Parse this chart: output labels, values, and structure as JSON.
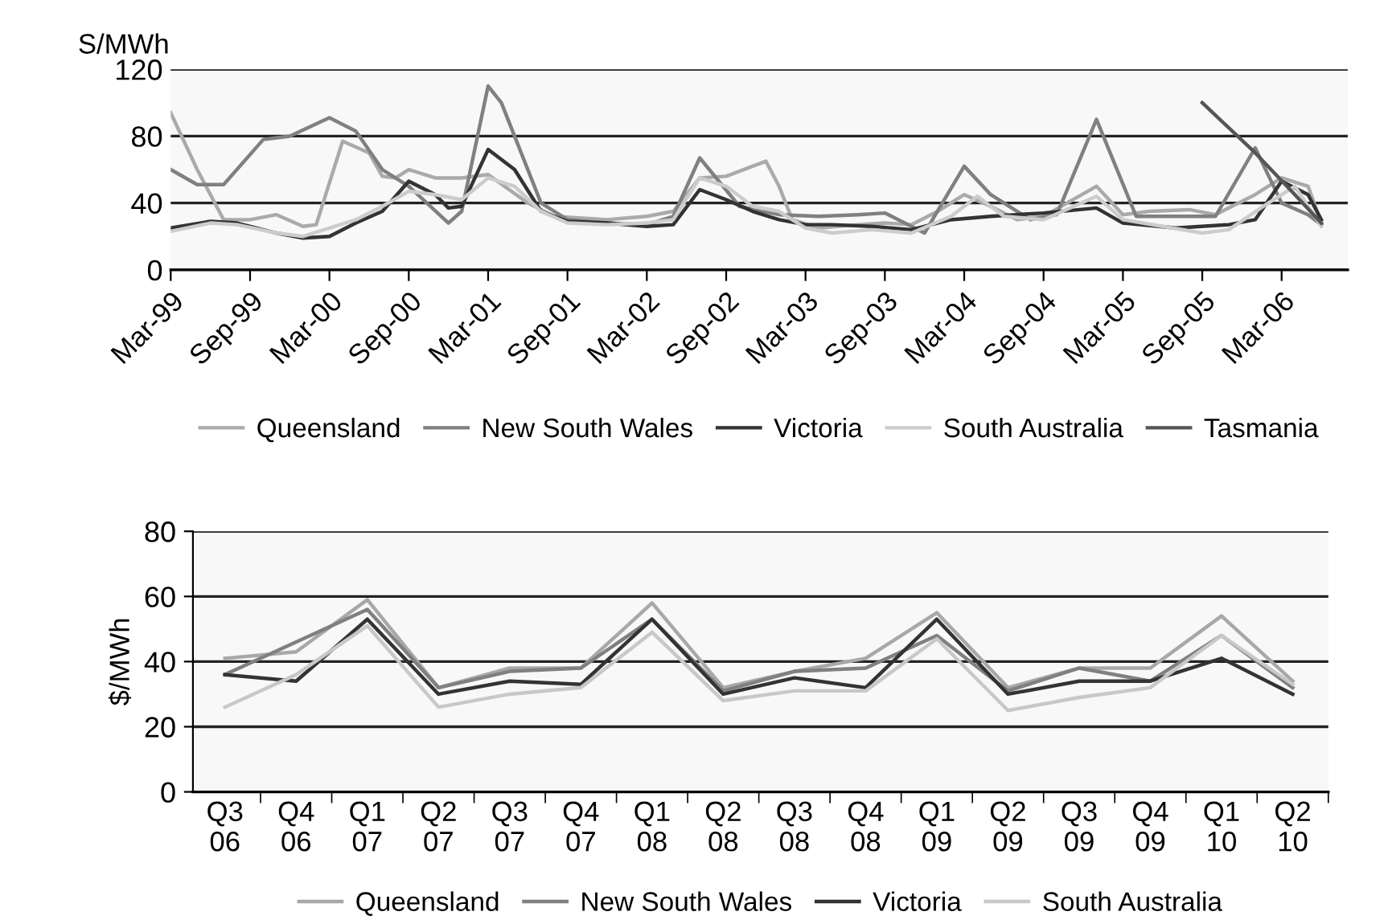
{
  "chart_data": [
    {
      "type": "line",
      "ylabel": "S/MWh",
      "ylim": [
        0,
        120
      ],
      "yticks": [
        0,
        40,
        80,
        120
      ],
      "grid": "y",
      "legend": "bottom",
      "xlim": [
        "1999-03",
        "2006-08"
      ],
      "xticks": [
        {
          "value": "1999-03",
          "label": "Mar-99"
        },
        {
          "value": "1999-09",
          "label": "Sep-99"
        },
        {
          "value": "2000-03",
          "label": "Mar-00"
        },
        {
          "value": "2000-09",
          "label": "Sep-00"
        },
        {
          "value": "2001-03",
          "label": "Mar-01"
        },
        {
          "value": "2001-09",
          "label": "Sep-01"
        },
        {
          "value": "2002-03",
          "label": "Mar-02"
        },
        {
          "value": "2002-09",
          "label": "Sep-02"
        },
        {
          "value": "2003-03",
          "label": "Mar-03"
        },
        {
          "value": "2003-09",
          "label": "Sep-03"
        },
        {
          "value": "2004-03",
          "label": "Mar-04"
        },
        {
          "value": "2004-09",
          "label": "Sep-04"
        },
        {
          "value": "2005-03",
          "label": "Mar-05"
        },
        {
          "value": "2005-09",
          "label": "Sep-05"
        },
        {
          "value": "2006-03",
          "label": "Mar-06"
        }
      ],
      "series": [
        {
          "name": "Queensland",
          "color": "#aaaaaa",
          "x": [
            "1999-03",
            "1999-05",
            "1999-07",
            "1999-09",
            "1999-11",
            "2000-01",
            "2000-02",
            "2000-04",
            "2000-06",
            "2000-07",
            "2000-08",
            "2000-09",
            "2000-11",
            "2001-01",
            "2001-03",
            "2001-06",
            "2001-08",
            "2001-12",
            "2002-03",
            "2002-05",
            "2002-07",
            "2002-09",
            "2002-12",
            "2003-01",
            "2003-02",
            "2003-04",
            "2003-07",
            "2003-09",
            "2003-11",
            "2004-01",
            "2004-03",
            "2004-05",
            "2004-07",
            "2004-09",
            "2005-01",
            "2005-03",
            "2005-05",
            "2005-08",
            "2005-10",
            "2006-01",
            "2006-03",
            "2006-05",
            "2006-06"
          ],
          "values": [
            94,
            60,
            30,
            30,
            33,
            26,
            27,
            77,
            70,
            56,
            55,
            60,
            55,
            55,
            57,
            40,
            32,
            30,
            32,
            35,
            55,
            56,
            65,
            50,
            30,
            25,
            27,
            28,
            27,
            35,
            45,
            38,
            30,
            32,
            50,
            33,
            35,
            36,
            33,
            45,
            55,
            50,
            28
          ]
        },
        {
          "name": "New South Wales",
          "color": "#808080",
          "x": [
            "1999-03",
            "1999-05",
            "1999-07",
            "1999-10",
            "1999-12",
            "2000-03",
            "2000-05",
            "2000-07",
            "2000-09",
            "2000-12",
            "2001-01",
            "2001-03",
            "2001-04",
            "2001-07",
            "2001-09",
            "2001-12",
            "2002-03",
            "2002-05",
            "2002-07",
            "2002-10",
            "2003-01",
            "2003-04",
            "2003-07",
            "2003-09",
            "2003-12",
            "2004-03",
            "2004-05",
            "2004-08",
            "2004-10",
            "2005-01",
            "2005-04",
            "2005-08",
            "2005-10",
            "2006-01",
            "2006-03",
            "2006-05",
            "2006-06"
          ],
          "values": [
            60,
            51,
            51,
            78,
            80,
            91,
            83,
            60,
            50,
            28,
            35,
            110,
            100,
            40,
            30,
            28,
            27,
            32,
            67,
            38,
            33,
            32,
            33,
            34,
            22,
            62,
            45,
            30,
            33,
            90,
            32,
            32,
            32,
            73,
            40,
            33,
            27
          ]
        },
        {
          "name": "Victoria",
          "color": "#333333",
          "x": [
            "1999-03",
            "1999-06",
            "1999-08",
            "1999-11",
            "2000-01",
            "2000-03",
            "2000-05",
            "2000-07",
            "2000-09",
            "2000-11",
            "2000-12",
            "2001-01",
            "2001-03",
            "2001-05",
            "2001-07",
            "2001-09",
            "2001-12",
            "2002-03",
            "2002-05",
            "2002-07",
            "2002-09",
            "2002-11",
            "2003-01",
            "2003-03",
            "2003-05",
            "2003-08",
            "2003-11",
            "2004-02",
            "2004-05",
            "2004-09",
            "2005-01",
            "2005-03",
            "2005-07",
            "2005-11",
            "2006-01",
            "2006-03",
            "2006-05",
            "2006-06"
          ],
          "values": [
            25,
            29,
            28,
            22,
            19,
            20,
            28,
            35,
            53,
            45,
            37,
            38,
            72,
            60,
            35,
            29,
            28,
            26,
            27,
            48,
            42,
            35,
            30,
            27,
            27,
            26,
            24,
            30,
            32,
            34,
            37,
            28,
            25,
            27,
            30,
            53,
            45,
            30
          ]
        },
        {
          "name": "South Australia",
          "color": "#cccccc",
          "x": [
            "1999-03",
            "1999-06",
            "1999-08",
            "1999-11",
            "2000-01",
            "2000-03",
            "2000-05",
            "2000-07",
            "2000-09",
            "2000-11",
            "2001-01",
            "2001-03",
            "2001-05",
            "2001-07",
            "2001-09",
            "2001-12",
            "2002-03",
            "2002-05",
            "2002-07",
            "2002-09",
            "2002-11",
            "2003-01",
            "2003-03",
            "2003-05",
            "2003-08",
            "2003-11",
            "2004-02",
            "2004-04",
            "2004-06",
            "2004-09",
            "2005-01",
            "2005-03",
            "2005-06",
            "2005-09",
            "2005-11",
            "2006-02",
            "2006-04",
            "2006-06"
          ],
          "values": [
            23,
            28,
            27,
            22,
            20,
            25,
            30,
            38,
            47,
            45,
            42,
            55,
            50,
            35,
            28,
            27,
            28,
            30,
            55,
            50,
            38,
            35,
            25,
            22,
            24,
            22,
            32,
            44,
            32,
            30,
            44,
            30,
            26,
            22,
            24,
            40,
            50,
            26
          ]
        },
        {
          "name": "Tasmania",
          "color": "#555555",
          "x": [
            "2005-09",
            "2006-01",
            "2006-04",
            "2006-06"
          ],
          "values": [
            100,
            70,
            45,
            28
          ]
        }
      ]
    },
    {
      "type": "line",
      "ylabel": "$/MWh",
      "ylim": [
        0,
        80
      ],
      "yticks": [
        0,
        20,
        40,
        60,
        80
      ],
      "grid": "y",
      "legend": "bottom",
      "categories": [
        "Q3\n06",
        "Q4\n06",
        "Q1\n07",
        "Q2\n07",
        "Q3\n07",
        "Q4\n07",
        "Q1\n08",
        "Q2\n08",
        "Q3\n08",
        "Q4\n08",
        "Q1\n09",
        "Q2\n09",
        "Q3\n09",
        "Q4\n09",
        "Q1\n10",
        "Q2\n10"
      ],
      "series": [
        {
          "name": "Queensland",
          "color": "#a8a8a8",
          "values": [
            41,
            43,
            59,
            32,
            38,
            38,
            58,
            32,
            37,
            41,
            55,
            32,
            38,
            38,
            54,
            34
          ]
        },
        {
          "name": "New South Wales",
          "color": "#808080",
          "values": [
            36,
            46,
            56,
            32,
            37,
            38,
            53,
            31,
            37,
            38,
            48,
            31,
            38,
            34,
            48,
            32
          ]
        },
        {
          "name": "Victoria",
          "color": "#333333",
          "values": [
            36,
            34,
            53,
            30,
            34,
            33,
            53,
            30,
            35,
            32,
            53,
            30,
            34,
            34,
            41,
            30
          ]
        },
        {
          "name": "South Australia",
          "color": "#c8c8c8",
          "values": [
            26,
            36,
            51,
            26,
            30,
            32,
            49,
            28,
            31,
            31,
            47,
            25,
            29,
            32,
            48,
            33
          ]
        }
      ]
    }
  ]
}
